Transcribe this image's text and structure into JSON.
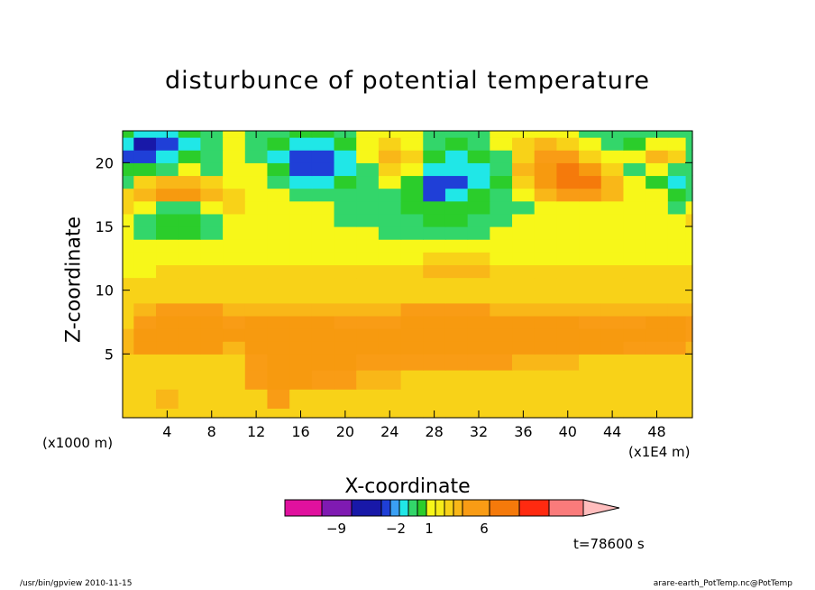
{
  "chart_data": {
    "type": "heatmap",
    "title": "disturbunce of potential temperature",
    "xlabel": "X-coordinate",
    "ylabel": "Z-coordinate",
    "x_unit": "(x1E4 m)",
    "y_unit": "(x1000 m)",
    "x_ticks": [
      4,
      8,
      12,
      16,
      20,
      24,
      28,
      32,
      36,
      40,
      44,
      48
    ],
    "y_ticks": [
      5,
      10,
      15,
      20
    ],
    "xlim": [
      0,
      51.2
    ],
    "ylim": [
      0,
      22.5
    ],
    "field": {
      "x": [
        0,
        2,
        4,
        6,
        8,
        10,
        12,
        14,
        16,
        18,
        20,
        22,
        24,
        26,
        28,
        30,
        32,
        34,
        36,
        38,
        40,
        42,
        44,
        46,
        48,
        50,
        51.2
      ],
      "z": [
        0,
        1.5,
        3,
        4.5,
        5.5,
        6.5,
        7.5,
        8.5,
        9.5,
        10.5,
        11.5,
        12.5,
        13.5,
        14.5,
        15.5,
        16.5,
        17.5,
        18.5,
        19.5,
        20.5,
        21.5,
        22.5
      ],
      "values": [
        [
          2,
          2,
          2,
          2,
          2,
          2,
          2,
          2,
          2,
          2,
          2,
          2,
          2,
          2,
          2,
          2,
          2,
          2,
          2,
          2,
          2,
          2,
          2,
          2,
          2,
          2,
          2
        ],
        [
          2,
          2,
          3,
          2,
          2,
          2,
          2,
          4,
          2,
          2,
          2,
          2,
          2,
          2,
          2,
          2,
          2,
          2,
          2,
          2,
          2,
          2,
          2,
          2,
          2,
          2,
          2
        ],
        [
          2,
          2,
          2,
          2,
          2,
          2,
          4,
          5,
          5,
          4,
          4,
          3,
          3,
          2,
          2,
          2,
          2,
          2,
          2,
          2,
          2,
          2,
          2,
          2,
          2,
          2,
          2
        ],
        [
          2,
          2,
          2,
          2,
          2,
          2,
          4,
          5,
          5,
          5,
          5,
          4,
          4,
          4,
          4,
          4,
          4,
          4,
          3,
          3,
          3,
          2,
          2,
          2,
          2,
          2,
          2
        ],
        [
          3,
          5,
          5,
          5,
          5,
          3,
          5,
          5,
          5,
          5,
          5,
          5,
          5,
          5,
          5,
          5,
          5,
          5,
          5,
          5,
          5,
          5,
          5,
          4,
          4,
          4,
          3
        ],
        [
          3,
          5,
          5,
          5,
          5,
          5,
          5,
          5,
          5,
          5,
          5,
          5,
          5,
          5,
          5,
          5,
          5,
          5,
          5,
          5,
          5,
          5,
          5,
          5,
          5,
          5,
          4
        ],
        [
          2,
          4,
          5,
          5,
          5,
          4,
          5,
          5,
          5,
          5,
          4,
          4,
          4,
          5,
          5,
          5,
          5,
          5,
          5,
          5,
          5,
          4,
          4,
          4,
          5,
          5,
          4
        ],
        [
          2,
          3,
          4,
          4,
          4,
          3,
          3,
          3,
          3,
          3,
          3,
          3,
          3,
          4,
          4,
          4,
          4,
          3,
          3,
          3,
          3,
          3,
          3,
          3,
          3,
          3,
          3
        ],
        [
          2,
          2,
          2,
          2,
          2,
          2,
          2,
          2,
          2,
          2,
          2,
          2,
          2,
          2,
          2,
          2,
          2,
          2,
          2,
          2,
          2,
          2,
          2,
          2,
          2,
          2,
          2
        ],
        [
          2,
          2,
          2,
          2,
          2,
          2,
          2,
          2,
          2,
          2,
          2,
          2,
          2,
          2,
          2,
          2,
          2,
          2,
          2,
          2,
          2,
          2,
          2,
          2,
          2,
          2,
          2
        ],
        [
          1,
          1,
          2,
          2,
          2,
          2,
          2,
          2,
          2,
          2,
          2,
          2,
          2,
          2,
          3,
          3,
          3,
          2,
          2,
          2,
          2,
          2,
          2,
          2,
          2,
          2,
          2
        ],
        [
          1,
          1,
          1,
          1,
          1,
          1,
          1,
          1,
          1,
          1,
          1,
          1,
          1,
          1,
          2,
          2,
          2,
          1,
          1,
          1,
          1,
          1,
          1,
          1,
          1,
          1,
          1
        ],
        [
          1,
          1,
          1,
          1,
          1,
          1,
          1,
          1,
          1,
          1,
          1,
          1,
          1,
          1,
          1,
          1,
          1,
          1,
          1,
          1,
          1,
          1,
          1,
          1,
          1,
          1,
          1
        ],
        [
          1,
          0,
          -1,
          -1,
          0,
          1,
          1,
          1,
          1,
          1,
          1,
          1,
          0,
          0,
          0,
          0,
          0,
          1,
          1,
          1,
          1,
          1,
          1,
          1,
          1,
          1,
          1
        ],
        [
          1,
          0,
          -2,
          -2,
          0,
          1,
          1,
          1,
          1,
          1,
          0,
          0,
          0,
          0,
          -1,
          -1,
          0,
          0,
          1,
          1,
          1,
          1,
          1,
          1,
          1,
          1,
          2
        ],
        [
          2,
          1,
          0,
          0,
          1,
          2,
          1,
          1,
          1,
          1,
          0,
          0,
          0,
          -1,
          -2,
          -2,
          -1,
          0,
          0,
          1,
          1,
          1,
          1,
          1,
          1,
          0,
          1
        ],
        [
          2,
          3,
          5,
          5,
          3,
          2,
          1,
          1,
          0,
          0,
          0,
          0,
          0,
          -2,
          -5,
          -3,
          -2,
          0,
          1,
          3,
          4,
          4,
          3,
          1,
          1,
          -1,
          0
        ],
        [
          0,
          2,
          3,
          3,
          2,
          1,
          1,
          0,
          -3,
          -3,
          -2,
          0,
          1,
          -2,
          -6,
          -5,
          -3,
          -1,
          2,
          5,
          6,
          6,
          3,
          1,
          -2,
          -3,
          0
        ],
        [
          -2,
          -2,
          0,
          1,
          0,
          1,
          1,
          -2,
          -6,
          -6,
          -4,
          0,
          2,
          1,
          -3,
          -4,
          -3,
          0,
          3,
          5,
          6,
          5,
          2,
          0,
          1,
          0,
          0
        ],
        [
          -5,
          -6,
          -3,
          -2,
          0,
          1,
          0,
          -3,
          -6,
          -6,
          -3,
          1,
          3,
          2,
          -1,
          -3,
          -2,
          0,
          2,
          4,
          4,
          2,
          1,
          1,
          3,
          2,
          0
        ],
        [
          -4,
          -7,
          -5,
          -3,
          0,
          1,
          0,
          -1,
          -3,
          -3,
          -1,
          1,
          2,
          1,
          0,
          -1,
          0,
          1,
          2,
          3,
          2,
          1,
          0,
          -1,
          1,
          1,
          0
        ],
        [
          -2,
          -4,
          -4,
          -2,
          0,
          1,
          0,
          0,
          -1,
          -1,
          0,
          1,
          1,
          1,
          0,
          0,
          0,
          1,
          1,
          1,
          1,
          0,
          0,
          0,
          0,
          0,
          0
        ]
      ]
    },
    "colorbar": {
      "levels": [
        -9,
        -2,
        1,
        6
      ],
      "labels": [
        "−9",
        "−2",
        "1",
        "6"
      ],
      "colors": [
        "#e0119e",
        "#7f1ab2",
        "#1818a8",
        "#1f3fd7",
        "#3aa0f4",
        "#20e7e7",
        "#33d66a",
        "#2bcd2b",
        "#f7f719",
        "#f7ec19",
        "#f8d218",
        "#f9b718",
        "#f99c15",
        "#f57a0b",
        "#ff2a10",
        "#fa7b7b",
        "#ffbdbd"
      ]
    },
    "grid": false,
    "legend": "bottom"
  },
  "labels": {
    "timestamp": "t=78600 s",
    "footer_left": "/usr/bin/gpview   2010-11-15",
    "footer_right": "arare-earth_PotTemp.nc@PotTemp"
  }
}
